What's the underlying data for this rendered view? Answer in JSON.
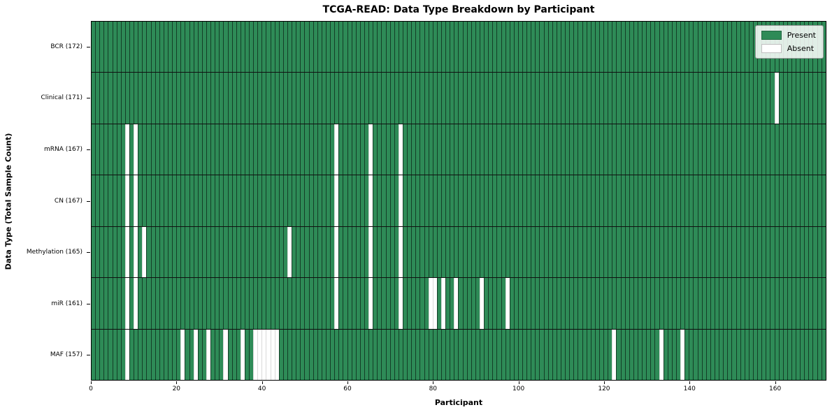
{
  "title": "TCGA-READ: Data Type Breakdown by Participant",
  "xlabel": "Participant",
  "ylabel": "Data Type (Total Sample Count)",
  "legend": {
    "present_label": "Present",
    "absent_label": "Absent"
  },
  "colors": {
    "present": "#2E8B57",
    "absent": "#ffffff",
    "cell_edge": "#000000",
    "legend_background": "#e9eee9"
  },
  "chart_data": {
    "type": "heatmap",
    "title": "TCGA-READ: Data Type Breakdown by Participant",
    "xlabel": "Participant",
    "ylabel": "Data Type (Total Sample Count)",
    "n_participants": 172,
    "x_ticks": [
      0,
      20,
      40,
      60,
      80,
      100,
      120,
      140,
      160
    ],
    "x_range": [
      0,
      172
    ],
    "grid": "cell-borders",
    "legend_position": "upper right",
    "value_legend": {
      "present": 1,
      "absent": 0
    },
    "rows": [
      {
        "label": "BCR (172)",
        "data_type": "BCR",
        "total_sample_count": 172,
        "absent_participants": []
      },
      {
        "label": "Clinical (171)",
        "data_type": "Clinical",
        "total_sample_count": 171,
        "absent_participants": [
          160
        ]
      },
      {
        "label": "mRNA (167)",
        "data_type": "mRNA",
        "total_sample_count": 167,
        "absent_participants": [
          8,
          10,
          57,
          65,
          72
        ]
      },
      {
        "label": "CN (167)",
        "data_type": "CN",
        "total_sample_count": 167,
        "absent_participants": [
          8,
          10,
          57,
          65,
          72
        ]
      },
      {
        "label": "Methylation (165)",
        "data_type": "Methylation",
        "total_sample_count": 165,
        "absent_participants": [
          8,
          10,
          12,
          46,
          57,
          65,
          72
        ]
      },
      {
        "label": "miR (161)",
        "data_type": "miR",
        "total_sample_count": 161,
        "absent_participants": [
          8,
          10,
          57,
          65,
          72,
          79,
          80,
          82,
          85,
          91,
          97
        ]
      },
      {
        "label": "MAF (157)",
        "data_type": "MAF",
        "total_sample_count": 157,
        "absent_participants": [
          8,
          21,
          24,
          27,
          31,
          35,
          38,
          39,
          40,
          41,
          42,
          43,
          122,
          133,
          138
        ]
      }
    ]
  }
}
